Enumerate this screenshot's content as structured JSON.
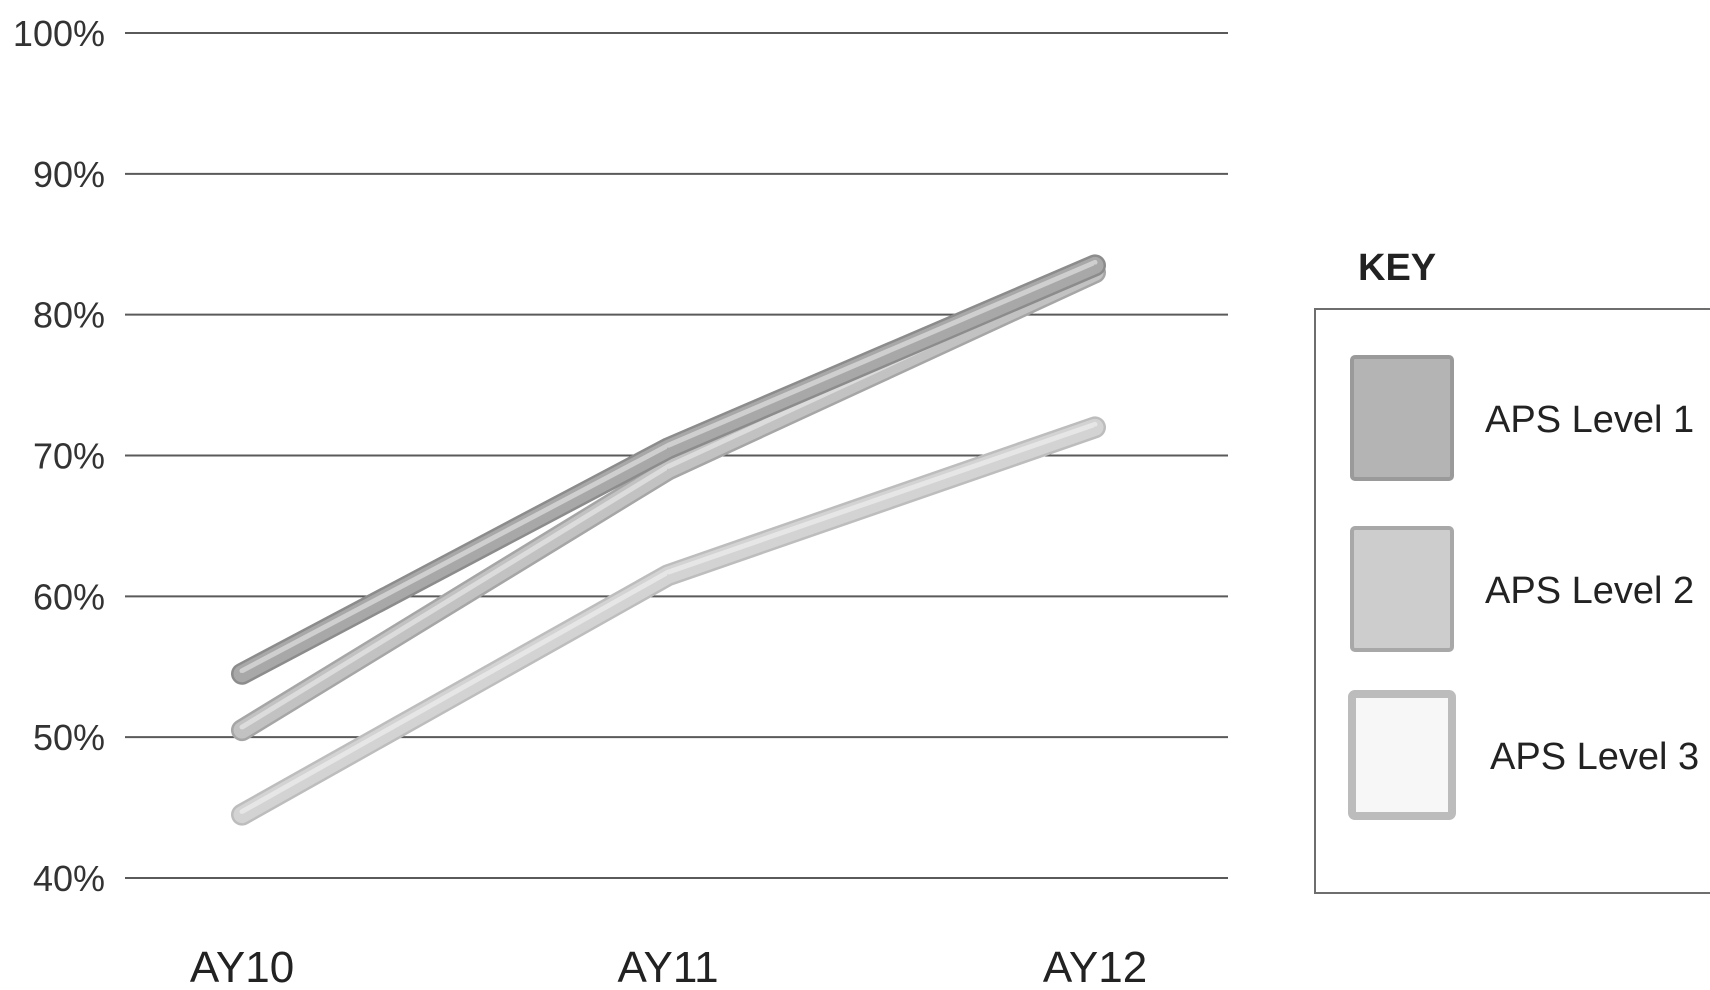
{
  "chart_data": {
    "type": "line",
    "categories": [
      "AY10",
      "AY11",
      "AY12"
    ],
    "yticks": [
      "100%",
      "90%",
      "80%",
      "70%",
      "60%",
      "50%",
      "40%"
    ],
    "ylim": [
      40,
      100
    ],
    "ytick_values": [
      100,
      90,
      80,
      70,
      60,
      50,
      40
    ],
    "series": [
      {
        "name": "APS Level 1",
        "values": [
          54.5,
          70.5,
          83.5
        ],
        "color": "#a8a8a8",
        "shadow": "#8c8c8c",
        "highlight": "#cfcfcf"
      },
      {
        "name": "APS Level 2",
        "values": [
          50.5,
          69,
          83
        ],
        "color": "#c2c2c2",
        "shadow": "#a6a6a6",
        "highlight": "#dcdcdc"
      },
      {
        "name": "APS Level 3",
        "values": [
          44.5,
          61.5,
          72
        ],
        "color": "#d3d3d3",
        "shadow": "#bdbdbd",
        "highlight": "#e6e6e6"
      }
    ],
    "legend": {
      "title": "KEY",
      "placement": "right",
      "items": [
        {
          "label": "APS Level 1",
          "fill": "#b4b4b4",
          "border": "#9a9a9a"
        },
        {
          "label": "APS Level 2",
          "fill": "#cdcdcd",
          "border": "#a8a8a8"
        },
        {
          "label": "APS Level 3",
          "fill": "#f7f7f7",
          "border": "#bcbcbc"
        }
      ]
    },
    "grid": true,
    "gridline_color": "#5a5a5a"
  }
}
